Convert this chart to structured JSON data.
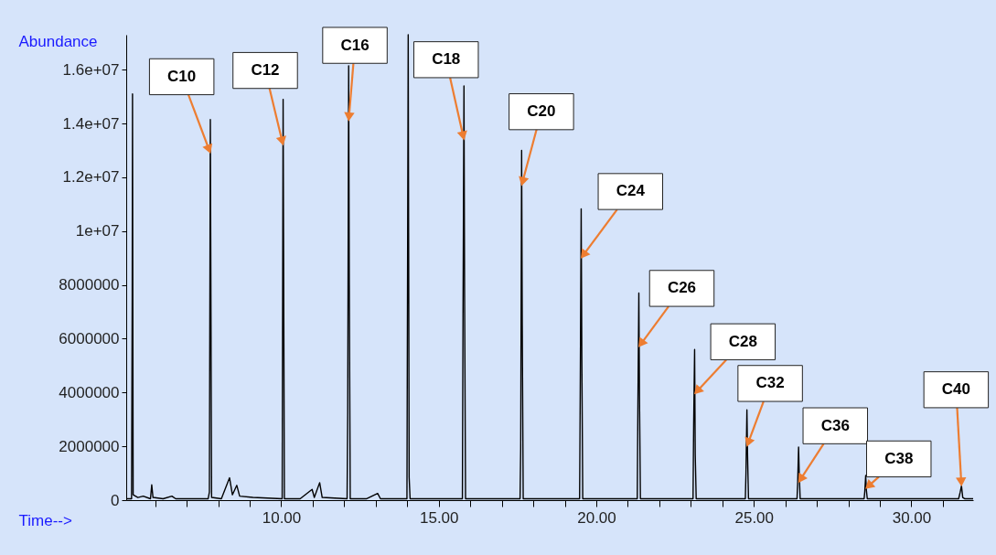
{
  "chart_data": {
    "type": "line",
    "xlabel": "Time-->",
    "ylabel": "Abundance",
    "x": [
      5.08,
      5.25,
      5.27,
      5.28,
      5.3,
      5.45,
      5.62,
      5.85,
      5.89,
      5.93,
      6.25,
      6.53,
      6.65,
      7.68,
      7.72,
      7.75,
      7.77,
      7.79,
      8.1,
      8.36,
      8.45,
      8.59,
      8.68,
      9.1,
      10.03,
      10.06,
      10.08,
      10.1,
      10.6,
      10.98,
      11.05,
      11.22,
      11.3,
      12.09,
      12.11,
      12.14,
      12.16,
      12.19,
      12.7,
      13.06,
      13.15,
      13.99,
      14.01,
      14.03,
      14.06,
      14.09,
      15.75,
      15.77,
      15.8,
      15.82,
      15.85,
      17.58,
      17.6,
      17.63,
      17.65,
      17.68,
      19.47,
      19.49,
      19.52,
      19.54,
      19.57,
      21.3,
      21.32,
      21.35,
      21.37,
      21.4,
      23.07,
      23.09,
      23.12,
      23.14,
      23.17,
      24.73,
      24.75,
      24.78,
      24.8,
      24.83,
      26.37,
      26.39,
      26.42,
      26.44,
      26.47,
      28.5,
      28.52,
      28.55,
      28.57,
      28.6,
      31.5,
      31.55,
      31.59,
      31.63,
      31.7,
      31.96
    ],
    "series": [
      {
        "color": "#000000",
        "values": [
          50000,
          50000,
          7500000,
          15100000,
          200000,
          100000,
          150000,
          50000,
          570000,
          100000,
          50000,
          150000,
          50000,
          50000,
          300000,
          14150000,
          7000000,
          100000,
          50000,
          830000,
          200000,
          550000,
          150000,
          100000,
          50000,
          14900000,
          7400000,
          50000,
          50000,
          400000,
          100000,
          650000,
          100000,
          50000,
          3300000,
          16150000,
          8000000,
          50000,
          50000,
          250000,
          50000,
          50000,
          8600000,
          17300000,
          850000,
          50000,
          50000,
          6800000,
          15400000,
          7600000,
          50000,
          50000,
          1900000,
          13000000,
          6500000,
          50000,
          50000,
          4000000,
          10830000,
          5400000,
          50000,
          50000,
          3500000,
          7700000,
          3900000,
          50000,
          50000,
          2800000,
          5600000,
          1700000,
          50000,
          50000,
          1000000,
          3360000,
          1700000,
          50000,
          50000,
          600000,
          1970000,
          1000000,
          50000,
          50000,
          300000,
          920000,
          400000,
          50000,
          50000,
          300000,
          530000,
          100000,
          50000,
          50000
        ]
      }
    ],
    "xlim": [
      5.08,
      31.96
    ],
    "xticks": [
      {
        "value": 6,
        "label": null
      },
      {
        "value": 7,
        "label": null
      },
      {
        "value": 8,
        "label": null
      },
      {
        "value": 9,
        "label": null
      },
      {
        "value": 10,
        "label": "10.00"
      },
      {
        "value": 11,
        "label": null
      },
      {
        "value": 12,
        "label": null
      },
      {
        "value": 13,
        "label": null
      },
      {
        "value": 14,
        "label": null
      },
      {
        "value": 15,
        "label": "15.00"
      },
      {
        "value": 16,
        "label": null
      },
      {
        "value": 17,
        "label": null
      },
      {
        "value": 18,
        "label": null
      },
      {
        "value": 19,
        "label": null
      },
      {
        "value": 20,
        "label": "20.00"
      },
      {
        "value": 21,
        "label": null
      },
      {
        "value": 22,
        "label": null
      },
      {
        "value": 23,
        "label": null
      },
      {
        "value": 24,
        "label": null
      },
      {
        "value": 25,
        "label": "25.00"
      },
      {
        "value": 26,
        "label": null
      },
      {
        "value": 27,
        "label": null
      },
      {
        "value": 28,
        "label": null
      },
      {
        "value": 29,
        "label": null
      },
      {
        "value": 30,
        "label": "30.00"
      },
      {
        "value": 31,
        "label": null
      }
    ],
    "ylim": [
      0,
      17300000
    ],
    "yticks": [
      0,
      2000000,
      4000000,
      6000000,
      8000000,
      {
        "value": 10000000,
        "label": "1e+07"
      },
      {
        "value": 12000000,
        "label": "1.2e+07"
      },
      {
        "value": 14000000,
        "label": "1.4e+07"
      },
      {
        "value": 16000000,
        "label": "1.6e+07"
      }
    ],
    "grid": false,
    "legend": false,
    "annotations": [
      {
        "text": "C10",
        "x": 7.75,
        "y": 12900000
      },
      {
        "text": "C12",
        "x": 10.06,
        "y": 13200000
      },
      {
        "text": "C16",
        "x": 12.14,
        "y": 14100000
      },
      {
        "text": "C18",
        "x": 15.8,
        "y": 13400000
      },
      {
        "text": "C20",
        "x": 17.63,
        "y": 11700000
      },
      {
        "text": "C24",
        "x": 19.52,
        "y": 9000000
      },
      {
        "text": "C26",
        "x": 21.35,
        "y": 5700000
      },
      {
        "text": "C28",
        "x": 23.12,
        "y": 3950000
      },
      {
        "text": "C32",
        "x": 24.78,
        "y": 2000000
      },
      {
        "text": "C36",
        "x": 26.42,
        "y": 660000
      },
      {
        "text": "C38",
        "x": 28.55,
        "y": 430000
      },
      {
        "text": "C40",
        "x": 31.59,
        "y": 530000
      }
    ]
  }
}
